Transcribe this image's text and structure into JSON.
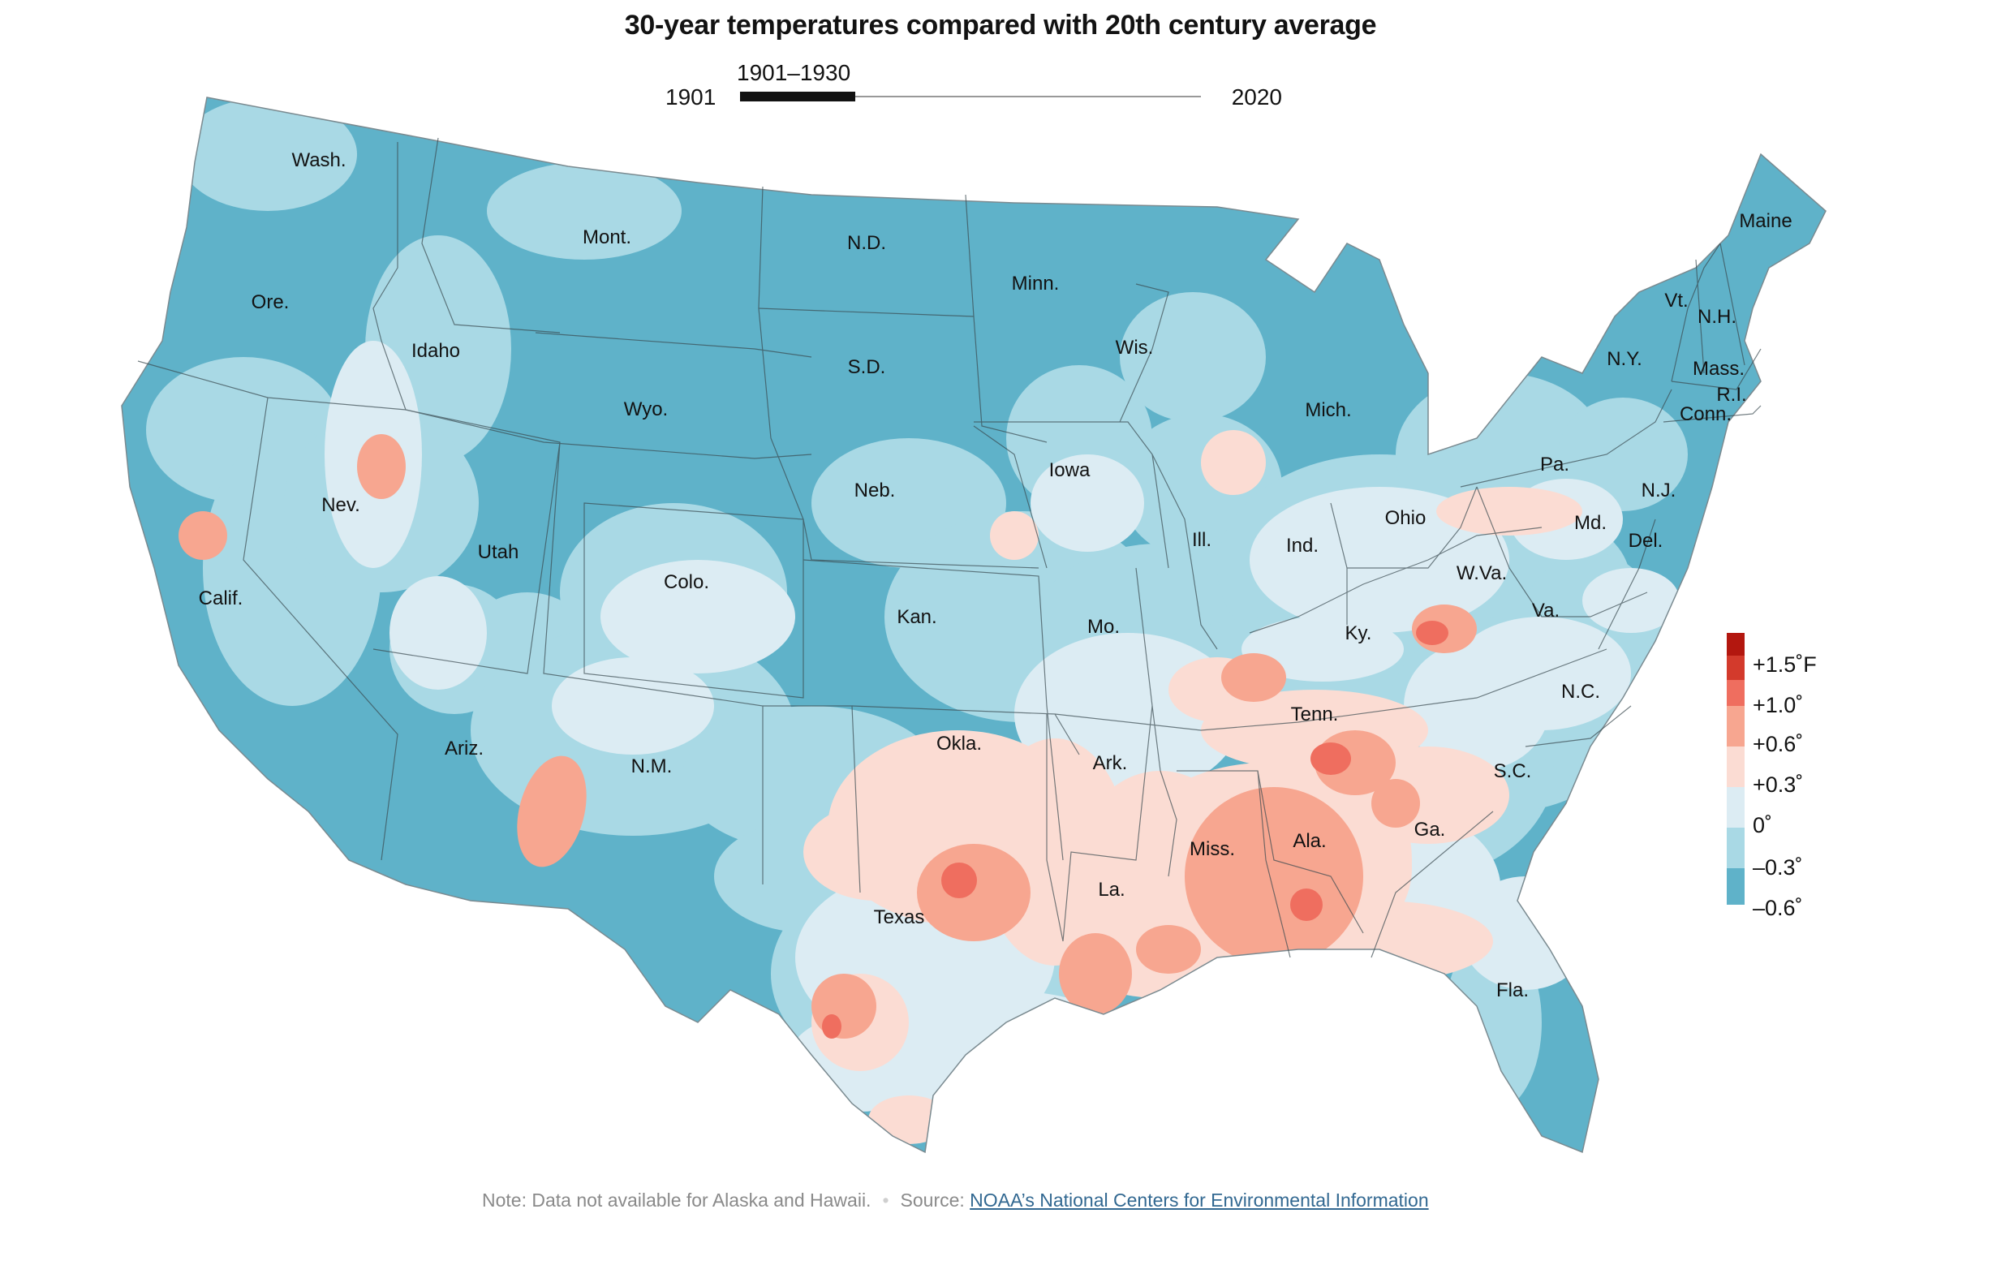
{
  "title": "30-year temperatures compared with 20th century average",
  "slider": {
    "start_label": "1901",
    "end_label": "2020",
    "window_label": "1901–1930",
    "window": [
      1901,
      1930
    ],
    "range": [
      1901,
      2020
    ]
  },
  "states": [
    {
      "name": "Wash."
    },
    {
      "name": "Ore."
    },
    {
      "name": "Calif."
    },
    {
      "name": "Idaho"
    },
    {
      "name": "Nev."
    },
    {
      "name": "Mont."
    },
    {
      "name": "Wyo."
    },
    {
      "name": "Utah"
    },
    {
      "name": "Ariz."
    },
    {
      "name": "Colo."
    },
    {
      "name": "N.M."
    },
    {
      "name": "N.D."
    },
    {
      "name": "S.D."
    },
    {
      "name": "Neb."
    },
    {
      "name": "Kan."
    },
    {
      "name": "Okla."
    },
    {
      "name": "Texas"
    },
    {
      "name": "Minn."
    },
    {
      "name": "Iowa"
    },
    {
      "name": "Mo."
    },
    {
      "name": "Ark."
    },
    {
      "name": "La."
    },
    {
      "name": "Wis."
    },
    {
      "name": "Ill."
    },
    {
      "name": "Mich."
    },
    {
      "name": "Ind."
    },
    {
      "name": "Ohio"
    },
    {
      "name": "Ky."
    },
    {
      "name": "Tenn."
    },
    {
      "name": "Miss."
    },
    {
      "name": "Ala."
    },
    {
      "name": "Ga."
    },
    {
      "name": "Fla."
    },
    {
      "name": "S.C."
    },
    {
      "name": "N.C."
    },
    {
      "name": "Va."
    },
    {
      "name": "W.Va."
    },
    {
      "name": "Pa."
    },
    {
      "name": "N.Y."
    },
    {
      "name": "Md."
    },
    {
      "name": "Del."
    },
    {
      "name": "N.J."
    },
    {
      "name": "Conn."
    },
    {
      "name": "R.I."
    },
    {
      "name": "Mass."
    },
    {
      "name": "Vt."
    },
    {
      "name": "N.H."
    },
    {
      "name": "Maine"
    }
  ],
  "legend": {
    "ticks": [
      "+1.5˚F",
      "+1.0˚",
      "+0.6˚",
      "+0.3˚",
      "0˚",
      "–0.3˚",
      "–0.6˚"
    ],
    "colors": [
      "#b3170f",
      "#d33a2c",
      "#ef6e5f",
      "#f7a690",
      "#fbdcd3",
      "#dcecf3",
      "#a9d9e5",
      "#5fb2c9"
    ]
  },
  "colors": {
    "strong_cool": "#5fb2c9",
    "cool": "#a9d9e5",
    "slight_cool": "#dcecf3",
    "slight_warm": "#fbdcd3",
    "warm": "#f7a690",
    "hot": "#ef6e5f",
    "border": "#3a4a50"
  },
  "note": {
    "text": "Note: Data not available for Alaska and Hawaii.",
    "source_prefix": "Source:",
    "source_link": "NOAA’s National Centers for Environmental Information"
  }
}
